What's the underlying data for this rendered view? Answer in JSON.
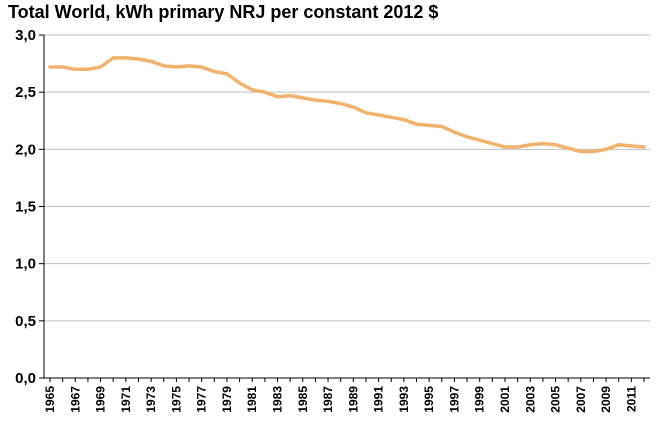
{
  "chart_data": {
    "type": "line",
    "title": "Total World, kWh primary NRJ per constant 2012 $",
    "xlabel": "",
    "ylabel": "",
    "ylim": [
      0,
      3
    ],
    "y_ticks": [
      "0,0",
      "0,5",
      "1,0",
      "1,5",
      "2,0",
      "2,5",
      "3,0"
    ],
    "grid": true,
    "legend": "none",
    "x_tick_labels": [
      "1965",
      "1967",
      "1969",
      "1971",
      "1973",
      "1975",
      "1977",
      "1979",
      "1981",
      "1983",
      "1985",
      "1987",
      "1989",
      "1991",
      "1993",
      "1995",
      "1997",
      "1999",
      "2001",
      "2003",
      "2005",
      "2007",
      "2009",
      "2011"
    ],
    "series": [
      {
        "color": "#F0B26C",
        "x": [
          1965,
          1966,
          1967,
          1968,
          1969,
          1970,
          1971,
          1972,
          1973,
          1974,
          1975,
          1976,
          1977,
          1978,
          1979,
          1980,
          1981,
          1982,
          1983,
          1984,
          1985,
          1986,
          1987,
          1988,
          1989,
          1990,
          1991,
          1992,
          1993,
          1994,
          1995,
          1996,
          1997,
          1998,
          1999,
          2000,
          2001,
          2002,
          2003,
          2004,
          2005,
          2006,
          2007,
          2008,
          2009,
          2010,
          2011,
          2012
        ],
        "values": [
          2.72,
          2.72,
          2.7,
          2.7,
          2.72,
          2.8,
          2.8,
          2.79,
          2.77,
          2.73,
          2.72,
          2.73,
          2.72,
          2.68,
          2.66,
          2.58,
          2.52,
          2.5,
          2.46,
          2.47,
          2.45,
          2.43,
          2.42,
          2.4,
          2.37,
          2.32,
          2.3,
          2.28,
          2.26,
          2.22,
          2.21,
          2.2,
          2.15,
          2.11,
          2.08,
          2.05,
          2.02,
          2.02,
          2.04,
          2.05,
          2.04,
          2.01,
          1.98,
          1.98,
          2.0,
          2.04,
          2.03,
          2.02
        ]
      }
    ]
  }
}
